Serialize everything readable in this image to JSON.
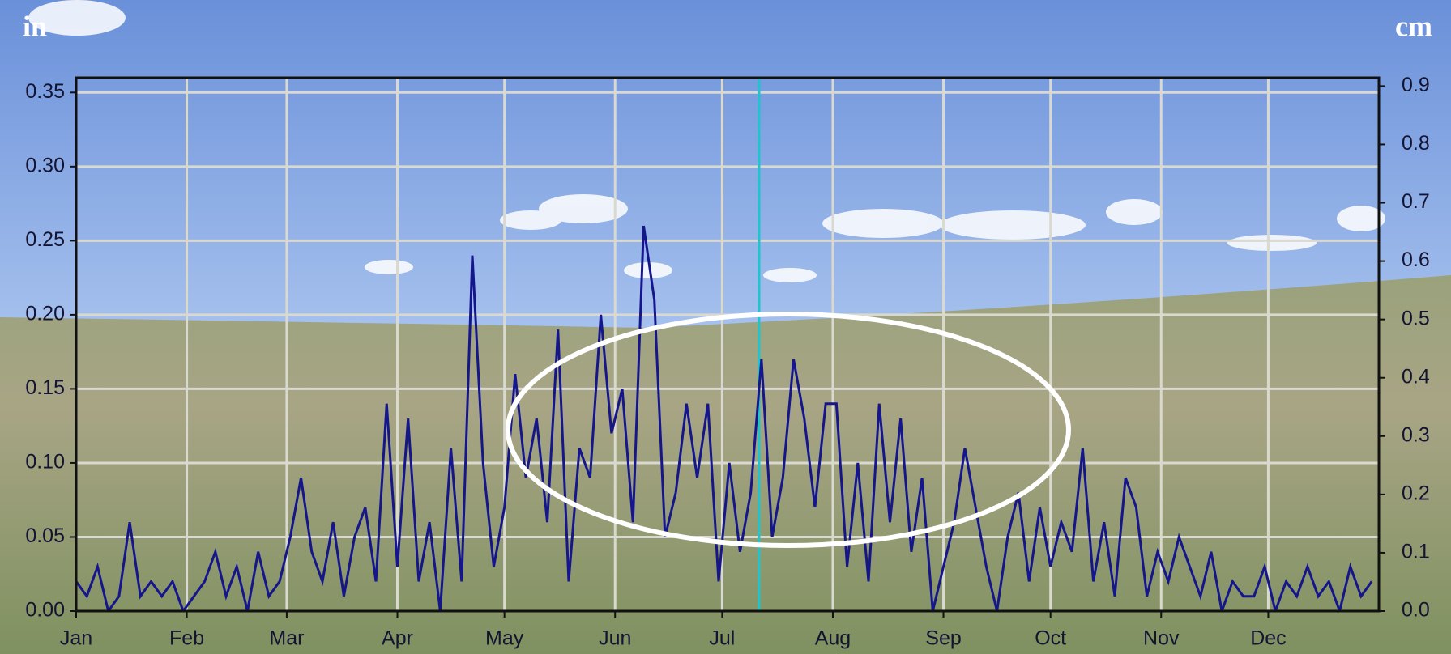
{
  "chart_data": {
    "type": "line",
    "y_unit": "in",
    "y2_unit": "cm",
    "color": "#16168c",
    "x": [
      1,
      4,
      7,
      10,
      13,
      16,
      19,
      22,
      25,
      28,
      31,
      34,
      37,
      40,
      43,
      46,
      49,
      52,
      55,
      58,
      61,
      64,
      67,
      70,
      73,
      76,
      79,
      82,
      85,
      88,
      91,
      94,
      97,
      100,
      103,
      106,
      109,
      112,
      115,
      118,
      121,
      124,
      127,
      130,
      133,
      136,
      139,
      142,
      145,
      148,
      151,
      154,
      157,
      160,
      163,
      166,
      169,
      172,
      175,
      178,
      181,
      184,
      187,
      190,
      193,
      196,
      199,
      202,
      205,
      208,
      211,
      214,
      217,
      220,
      223,
      226,
      229,
      232,
      235,
      238,
      241,
      244,
      247,
      250,
      253,
      256,
      259,
      262,
      265,
      268,
      271,
      274,
      277,
      280,
      283,
      286,
      289,
      292,
      295,
      298,
      301,
      304,
      307,
      310,
      313,
      316,
      319,
      322,
      325,
      328,
      331,
      334,
      337,
      340,
      343,
      346,
      349,
      352,
      355,
      358,
      361,
      364
    ],
    "values": [
      0.02,
      0.01,
      0.03,
      0.0,
      0.01,
      0.06,
      0.01,
      0.02,
      0.01,
      0.02,
      0.0,
      0.01,
      0.02,
      0.04,
      0.01,
      0.03,
      0.0,
      0.04,
      0.01,
      0.02,
      0.05,
      0.09,
      0.04,
      0.02,
      0.06,
      0.01,
      0.05,
      0.07,
      0.02,
      0.14,
      0.03,
      0.13,
      0.02,
      0.06,
      0.0,
      0.11,
      0.02,
      0.24,
      0.1,
      0.03,
      0.07,
      0.16,
      0.09,
      0.13,
      0.06,
      0.19,
      0.02,
      0.11,
      0.09,
      0.2,
      0.12,
      0.15,
      0.06,
      0.26,
      0.21,
      0.05,
      0.08,
      0.14,
      0.09,
      0.14,
      0.02,
      0.1,
      0.04,
      0.08,
      0.17,
      0.05,
      0.09,
      0.17,
      0.13,
      0.07,
      0.14,
      0.14,
      0.03,
      0.1,
      0.02,
      0.14,
      0.06,
      0.13,
      0.04,
      0.09,
      0.0,
      0.03,
      0.06,
      0.11,
      0.07,
      0.03,
      0.0,
      0.05,
      0.08,
      0.02,
      0.07,
      0.03,
      0.06,
      0.04,
      0.11,
      0.02,
      0.06,
      0.01,
      0.09,
      0.07,
      0.01,
      0.04,
      0.02,
      0.05,
      0.03,
      0.01,
      0.04,
      0.0,
      0.02,
      0.01,
      0.01,
      0.03,
      0.0,
      0.02,
      0.01,
      0.03,
      0.01,
      0.02,
      0.0,
      0.03,
      0.01,
      0.02
    ],
    "xlim": [
      1,
      366
    ],
    "xticks": [
      {
        "value": 1,
        "label": "Jan"
      },
      {
        "value": 32,
        "label": "Feb"
      },
      {
        "value": 60,
        "label": "Mar"
      },
      {
        "value": 91,
        "label": "Apr"
      },
      {
        "value": 121,
        "label": "May"
      },
      {
        "value": 152,
        "label": "Jun"
      },
      {
        "value": 182,
        "label": "Jul"
      },
      {
        "value": 213,
        "label": "Aug"
      },
      {
        "value": 244,
        "label": "Sep"
      },
      {
        "value": 274,
        "label": "Oct"
      },
      {
        "value": 305,
        "label": "Nov"
      },
      {
        "value": 335,
        "label": "Dec"
      }
    ],
    "ylim": [
      0,
      0.36
    ],
    "yticks": [
      {
        "value": 0,
        "label": "0.00"
      },
      {
        "value": 0.05,
        "label": "0.05"
      },
      {
        "value": 0.1,
        "label": "0.10"
      },
      {
        "value": 0.15,
        "label": "0.15"
      },
      {
        "value": 0.2,
        "label": "0.20"
      },
      {
        "value": 0.25,
        "label": "0.25"
      },
      {
        "value": 0.3,
        "label": "0.30"
      },
      {
        "value": 0.35,
        "label": "0.35"
      }
    ],
    "y2lim": [
      0,
      0.9144
    ],
    "y2ticks": [
      {
        "value": 0,
        "label": "0.0"
      },
      0.1,
      0.2,
      0.3,
      0.4,
      0.5,
      0.6,
      0.7,
      0.8,
      0.9
    ],
    "grid": true
  }
}
